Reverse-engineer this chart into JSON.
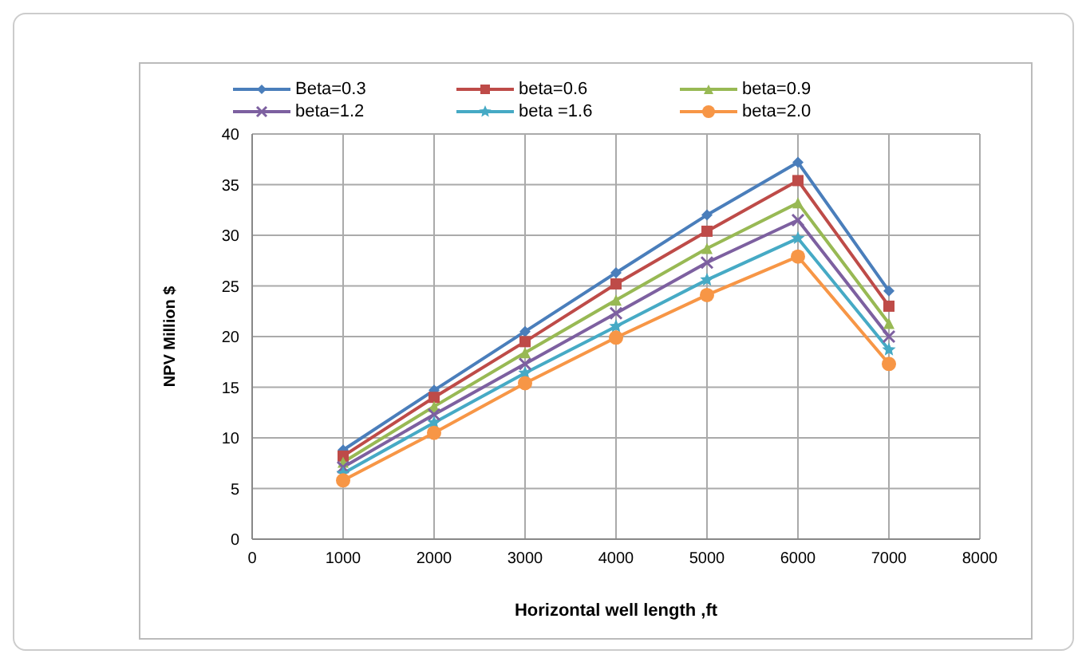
{
  "chart_data": {
    "type": "line",
    "xlabel": "Horizontal well length ,ft",
    "ylabel": "NPV  Million $",
    "x": [
      1000,
      2000,
      3000,
      4000,
      5000,
      6000,
      7000
    ],
    "series": [
      {
        "name": "Beta=0.3",
        "color": "#4a7ebb",
        "marker": "diamond",
        "values": [
          8.8,
          14.7,
          20.5,
          26.3,
          32,
          37.2,
          24.5
        ]
      },
      {
        "name": "beta=0.6",
        "color": "#be4b48",
        "marker": "square",
        "values": [
          8.2,
          14,
          19.5,
          25.2,
          30.4,
          35.4,
          23
        ]
      },
      {
        "name": "beta=0.9",
        "color": "#98b954",
        "marker": "triangle",
        "values": [
          7.6,
          13.1,
          18.4,
          23.6,
          28.7,
          33.2,
          21.3
        ]
      },
      {
        "name": "beta=1.2",
        "color": "#7d60a0",
        "marker": "cross",
        "values": [
          7.1,
          12.3,
          17.3,
          22.3,
          27.3,
          31.5,
          20
        ]
      },
      {
        "name": "beta =1.6",
        "color": "#46aac5",
        "marker": "star",
        "values": [
          6.5,
          11.5,
          16.4,
          21,
          25.6,
          29.7,
          18.7
        ]
      },
      {
        "name": "beta=2.0",
        "color": "#f79646",
        "marker": "circle",
        "values": [
          5.8,
          10.5,
          15.4,
          19.9,
          24.1,
          27.9,
          17.3
        ]
      }
    ],
    "xlim": [
      0,
      8000
    ],
    "xticks": [
      0,
      1000,
      2000,
      3000,
      4000,
      5000,
      6000,
      7000,
      8000
    ],
    "ylim": [
      0,
      40
    ],
    "yticks": [
      0,
      5,
      10,
      15,
      20,
      25,
      30,
      35,
      40
    ],
    "grid": true,
    "legend": "top"
  }
}
